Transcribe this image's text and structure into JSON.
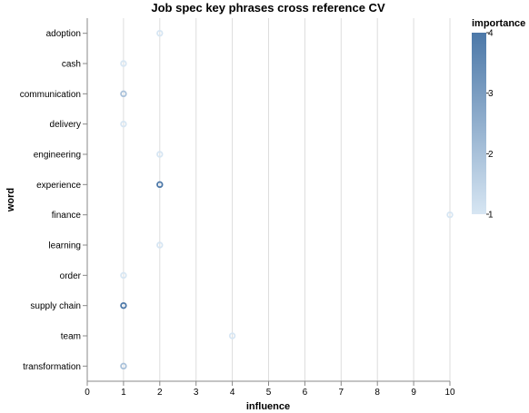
{
  "chart_data": {
    "type": "scatter",
    "title": "Job spec key phrases cross reference CV",
    "xlabel": "influence",
    "ylabel": "word",
    "xlim": [
      0,
      10
    ],
    "x_ticks": [
      "0",
      "1",
      "2",
      "3",
      "4",
      "5",
      "6",
      "7",
      "8",
      "9",
      "10"
    ],
    "categories": [
      "adoption",
      "cash",
      "communication",
      "delivery",
      "engineering",
      "experience",
      "finance",
      "learning",
      "order",
      "supply chain",
      "team",
      "transformation"
    ],
    "points": [
      {
        "word": "adoption",
        "influence": 2,
        "importance": 1
      },
      {
        "word": "cash",
        "influence": 1,
        "importance": 1
      },
      {
        "word": "communication",
        "influence": 1,
        "importance": 2
      },
      {
        "word": "delivery",
        "influence": 1,
        "importance": 1
      },
      {
        "word": "engineering",
        "influence": 2,
        "importance": 1
      },
      {
        "word": "experience",
        "influence": 2,
        "importance": 4
      },
      {
        "word": "finance",
        "influence": 10,
        "importance": 1
      },
      {
        "word": "learning",
        "influence": 2,
        "importance": 1
      },
      {
        "word": "order",
        "influence": 1,
        "importance": 1
      },
      {
        "word": "supply chain",
        "influence": 1,
        "importance": 4
      },
      {
        "word": "team",
        "influence": 4,
        "importance": 1
      },
      {
        "word": "transformation",
        "influence": 1,
        "importance": 2
      }
    ],
    "legend": {
      "title": "importance",
      "labels": [
        "4",
        "3",
        "2",
        "1"
      ],
      "range": [
        1,
        4
      ],
      "color_low": "#d7e6f3",
      "color_high": "#4c78a8",
      "position": "right"
    },
    "grid": true,
    "colors": {
      "grid": "#dddddd",
      "axis": "#888888"
    }
  }
}
